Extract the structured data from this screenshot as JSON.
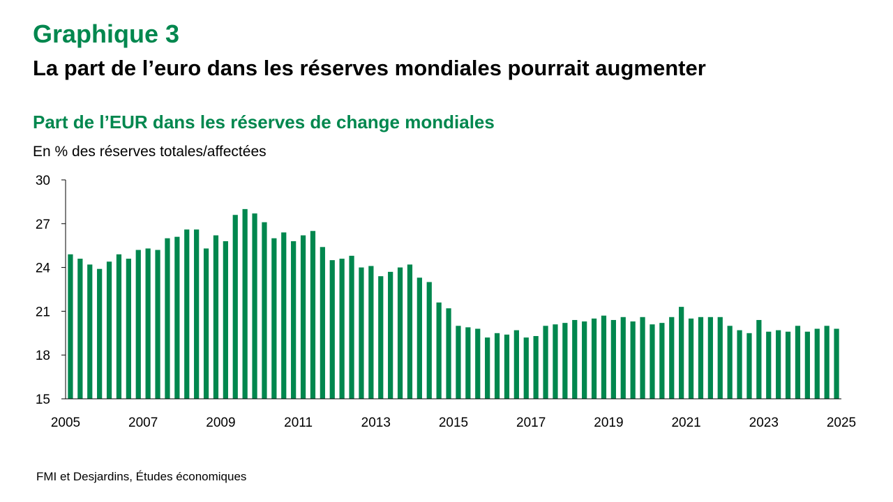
{
  "header": {
    "graph_number": "Graphique 3",
    "graph_title": "La part de l’euro dans les réserves mondiales pourrait augmenter"
  },
  "footer": {
    "source": "FMI et Desjardins, Études économiques"
  },
  "colors": {
    "accent": "#00874E",
    "bar": "#00874E",
    "text": "#000000"
  },
  "chart_data": {
    "type": "bar",
    "title": "Part de l’EUR dans les réserves de change mondiales",
    "ylabel": "En % des réserves totales/affectées",
    "xlabel": "",
    "ylim": [
      15,
      30
    ],
    "yticks": [
      15,
      18,
      21,
      24,
      27,
      30
    ],
    "xlim": [
      2005,
      2025
    ],
    "xticks": [
      "2005",
      "2007",
      "2009",
      "2011",
      "2013",
      "2015",
      "2017",
      "2019",
      "2021",
      "2023",
      "2025"
    ],
    "frequency": "quarterly",
    "grid": false,
    "legend": "none",
    "start_period": "2005-Q1",
    "values": [
      24.9,
      24.6,
      24.2,
      23.9,
      24.4,
      24.9,
      24.6,
      25.2,
      25.3,
      25.2,
      26.0,
      26.1,
      26.6,
      26.6,
      25.3,
      26.2,
      25.8,
      27.6,
      28.0,
      27.7,
      27.1,
      26.0,
      26.4,
      25.8,
      26.2,
      26.5,
      25.4,
      24.5,
      24.6,
      24.8,
      24.0,
      24.1,
      23.4,
      23.7,
      24.0,
      24.2,
      23.3,
      23.0,
      21.6,
      21.2,
      20.0,
      19.9,
      19.8,
      19.2,
      19.5,
      19.4,
      19.7,
      19.2,
      19.3,
      20.0,
      20.1,
      20.2,
      20.4,
      20.3,
      20.5,
      20.7,
      20.4,
      20.6,
      20.3,
      20.6,
      20.1,
      20.2,
      20.6,
      21.3,
      20.5,
      20.6,
      20.6,
      20.6,
      20.0,
      19.7,
      19.5,
      20.4,
      19.6,
      19.7,
      19.6,
      20.0,
      19.6,
      19.8,
      20.0,
      19.8
    ]
  }
}
